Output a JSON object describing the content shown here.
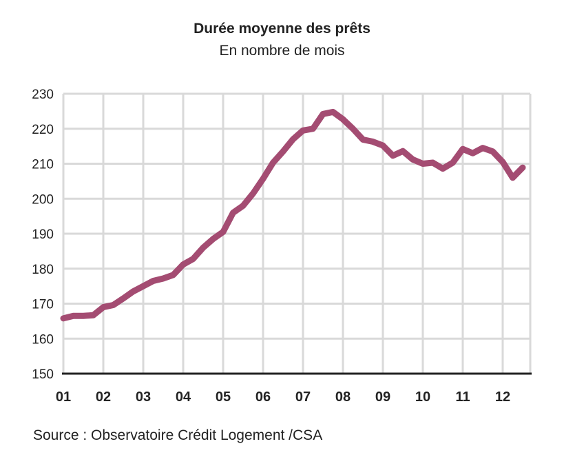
{
  "chart_data": {
    "type": "line",
    "title": "Durée moyenne des prêts",
    "subtitle": "En nombre de mois",
    "source": "Source : Observatoire Crédit Logement /CSA",
    "xlabel": "",
    "ylabel": "",
    "ylim": [
      150,
      230
    ],
    "yticks": [
      150,
      160,
      170,
      180,
      190,
      200,
      210,
      220,
      230
    ],
    "xlim": [
      2001,
      2012.75
    ],
    "xticks": [
      {
        "value": 2001,
        "label": "01"
      },
      {
        "value": 2002,
        "label": "02"
      },
      {
        "value": 2003,
        "label": "03"
      },
      {
        "value": 2004,
        "label": "04"
      },
      {
        "value": 2005,
        "label": "05"
      },
      {
        "value": 2006,
        "label": "06"
      },
      {
        "value": 2007,
        "label": "07"
      },
      {
        "value": 2008,
        "label": "08"
      },
      {
        "value": 2009,
        "label": "09"
      },
      {
        "value": 2010,
        "label": "10"
      },
      {
        "value": 2011,
        "label": "11"
      },
      {
        "value": 2012,
        "label": "12"
      }
    ],
    "grid": true,
    "color": "#a44c72",
    "x": [
      2001,
      2001.25,
      2001.5,
      2001.75,
      2002,
      2002.25,
      2002.5,
      2002.75,
      2003,
      2003.25,
      2003.5,
      2003.75,
      2004,
      2004.25,
      2004.5,
      2004.75,
      2005,
      2005.25,
      2005.5,
      2005.75,
      2006,
      2006.25,
      2006.5,
      2006.75,
      2007,
      2007.25,
      2007.5,
      2007.75,
      2008,
      2008.25,
      2008.5,
      2008.75,
      2009,
      2009.25,
      2009.5,
      2009.75,
      2010,
      2010.25,
      2010.5,
      2010.75,
      2011,
      2011.25,
      2011.5,
      2011.75,
      2012,
      2012.25,
      2012.5
    ],
    "y": [
      165.8,
      166.5,
      166.5,
      166.7,
      169,
      169.6,
      171.5,
      173.5,
      175,
      176.5,
      177.2,
      178.2,
      181.2,
      182.8,
      186,
      188.5,
      190.5,
      196,
      198,
      201.5,
      205.7,
      210.3,
      213.5,
      217,
      219.5,
      220,
      224.2,
      224.8,
      222.7,
      220,
      216.9,
      216.3,
      215.2,
      212.3,
      213.6,
      211.2,
      210,
      210.3,
      208.6,
      210.3,
      214.2,
      213,
      214.5,
      213.5,
      210.5,
      206,
      208.9
    ]
  }
}
